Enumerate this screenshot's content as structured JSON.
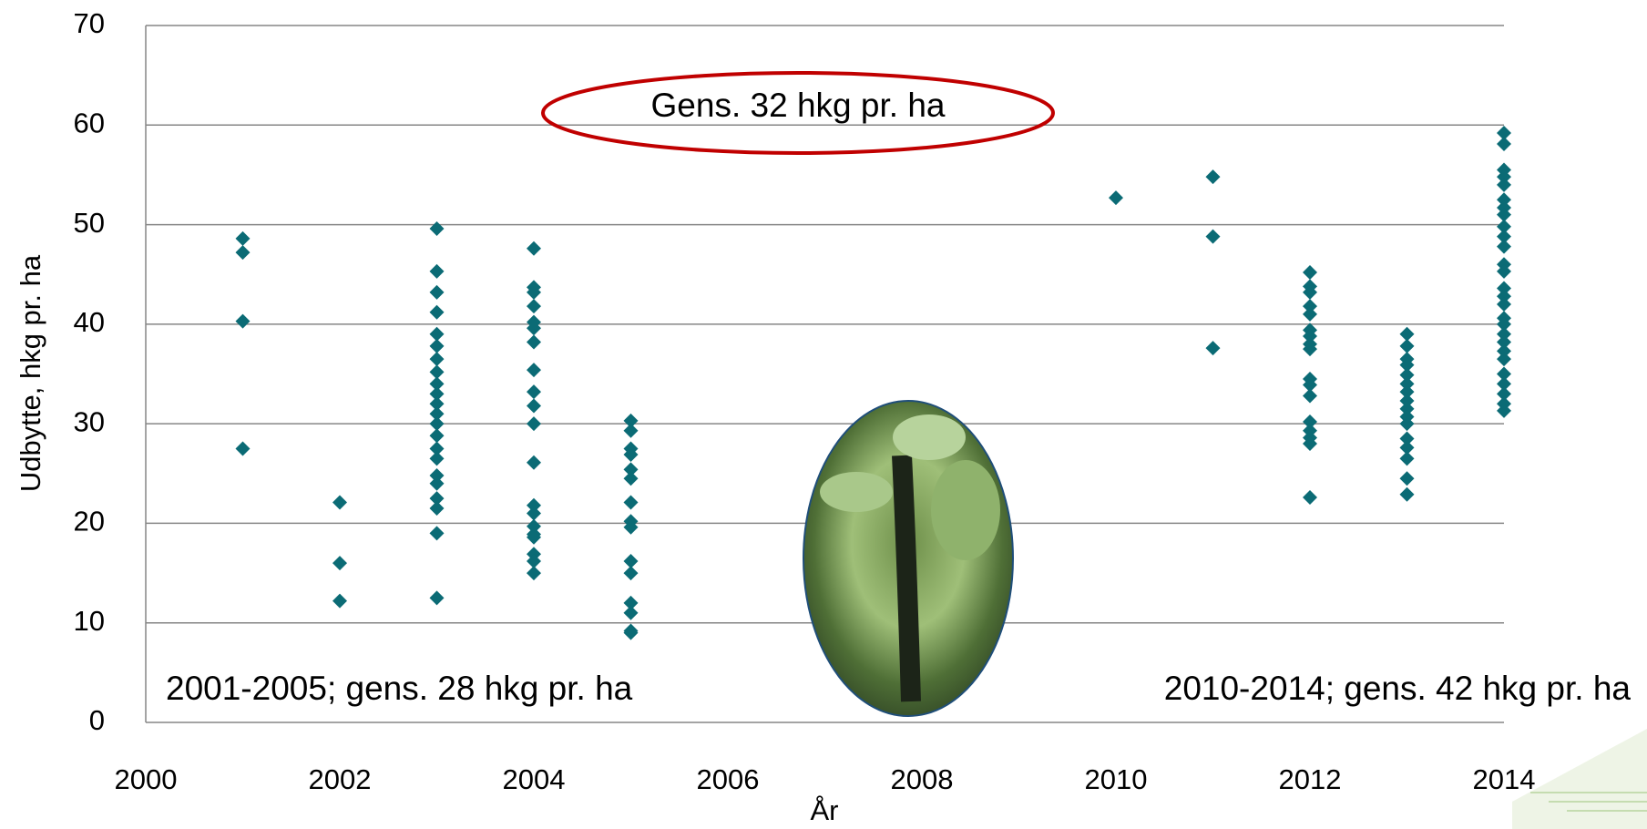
{
  "chart_data": {
    "type": "scatter",
    "x_label": "År",
    "y_label": "Udbytte, hkg pr. ha",
    "xlim": [
      2000,
      2014
    ],
    "xticks": [
      2000,
      2002,
      2004,
      2006,
      2008,
      2010,
      2012,
      2014
    ],
    "ylim": [
      0,
      70
    ],
    "yticks": [
      0,
      10,
      20,
      30,
      40,
      50,
      60,
      70
    ],
    "grid": true,
    "annotations": [
      "Gens. 32 hkg pr. ha",
      "2001-2005; gens. 28 hkg pr. ha",
      "2010-2014; gens. 42 hkg pr. ha"
    ],
    "series": [
      {
        "color": "#0b6b75",
        "x": [
          2001,
          2001,
          2001,
          2001,
          2002,
          2002,
          2002,
          2003,
          2003,
          2003,
          2003,
          2003,
          2003,
          2003,
          2003,
          2003,
          2003,
          2003,
          2003,
          2003,
          2003,
          2003,
          2003,
          2003,
          2003,
          2003,
          2003,
          2003,
          2003,
          2004,
          2004,
          2004,
          2004,
          2004,
          2004,
          2004,
          2004,
          2004,
          2004,
          2004,
          2004,
          2004,
          2004,
          2004,
          2004,
          2004,
          2004,
          2004,
          2004,
          2005,
          2005,
          2005,
          2005,
          2005,
          2005,
          2005,
          2005,
          2005,
          2005,
          2005,
          2005,
          2005,
          2005,
          2005,
          2010,
          2011,
          2011,
          2011,
          2012,
          2012,
          2012,
          2012,
          2012,
          2012,
          2012,
          2012,
          2012,
          2012,
          2012,
          2012,
          2012,
          2012,
          2012,
          2012,
          2012,
          2013,
          2013,
          2013,
          2013,
          2013,
          2013,
          2013,
          2013,
          2013,
          2013,
          2013,
          2013,
          2013,
          2013,
          2013,
          2013,
          2014,
          2014,
          2014,
          2014,
          2014,
          2014,
          2014,
          2014,
          2014,
          2014,
          2014,
          2014,
          2014,
          2014,
          2014,
          2014,
          2014,
          2014,
          2014,
          2014,
          2014,
          2014,
          2014,
          2014,
          2014,
          2014,
          2014
        ],
        "values": [
          48.6,
          47.2,
          40.3,
          27.5,
          22.1,
          16.0,
          12.2,
          49.6,
          45.3,
          43.2,
          41.2,
          39.0,
          37.8,
          36.5,
          35.2,
          34.0,
          33.0,
          32.0,
          31.0,
          30.0,
          28.8,
          27.5,
          26.5,
          24.8,
          24.0,
          22.5,
          21.5,
          19.0,
          12.5,
          47.6,
          43.7,
          43.2,
          41.8,
          40.2,
          39.6,
          38.2,
          35.4,
          33.2,
          31.8,
          30.0,
          26.1,
          21.8,
          21.0,
          19.7,
          18.9,
          18.6,
          16.9,
          16.2,
          15.0,
          30.3,
          29.3,
          27.5,
          26.9,
          25.4,
          24.5,
          22.1,
          20.2,
          19.6,
          16.2,
          15.0,
          12.0,
          11.0,
          9.2,
          9.0,
          52.7,
          54.8,
          48.8,
          37.6,
          45.2,
          43.8,
          43.2,
          41.8,
          41.0,
          39.4,
          38.8,
          38.0,
          37.5,
          34.5,
          33.9,
          32.8,
          30.2,
          29.3,
          28.6,
          28.0,
          22.6,
          39.0,
          37.8,
          36.5,
          35.9,
          34.9,
          34.0,
          33.2,
          32.3,
          31.5,
          30.7,
          30.0,
          28.5,
          27.6,
          26.5,
          24.5,
          22.9,
          59.2,
          58.1,
          55.5,
          54.8,
          54.0,
          52.5,
          51.7,
          51.0,
          49.8,
          48.8,
          47.8,
          46.0,
          45.3,
          43.6,
          42.8,
          42.0,
          40.6,
          40.0,
          39.0,
          38.2,
          37.3,
          36.5,
          35.0,
          34.0,
          33.0,
          32.0,
          31.3
        ]
      }
    ]
  }
}
